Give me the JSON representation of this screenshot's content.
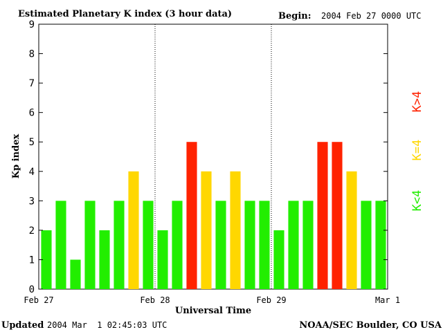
{
  "chart_data": {
    "type": "bar",
    "title": "Estimated Planetary K index (3 hour data)",
    "begin_label": "Begin:",
    "begin_value": "2004 Feb 27 0000 UTC",
    "xlabel": "Universal Time",
    "ylabel": "Kp index",
    "ylim": [
      0,
      9
    ],
    "yticks": [
      "0",
      "1",
      "2",
      "3",
      "4",
      "5",
      "6",
      "7",
      "8",
      "9"
    ],
    "day_labels": [
      "Feb 27",
      "Feb 28",
      "Feb 29",
      "Mar 1"
    ],
    "values": [
      2,
      3,
      1,
      3,
      2,
      3,
      4,
      3,
      2,
      3,
      5,
      4,
      3,
      4,
      3,
      3,
      2,
      3,
      3,
      5,
      5,
      4,
      3,
      3
    ],
    "colors": {
      "below_4": "#22ee00",
      "equal_4": "#ffd700",
      "above_4": "#ff2200"
    },
    "legend": {
      "below_4": "K<4",
      "equal_4": "K=4",
      "above_4": "K>4"
    }
  },
  "footer": {
    "updated_label": "Updated",
    "updated_value": "2004 Mar  1 02:45:03 UTC",
    "source": "NOAA/SEC Boulder, CO USA"
  }
}
